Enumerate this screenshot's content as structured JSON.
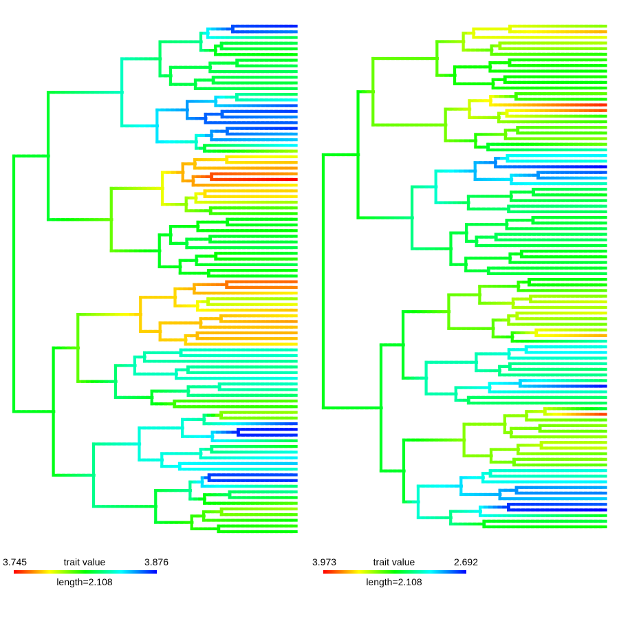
{
  "chart_data": [
    {
      "type": "phylogeny-contmap",
      "panel": "left",
      "legend": {
        "min_label": "3.745",
        "title": "trait value",
        "max_label": "3.876",
        "length_label": "length=2.108"
      },
      "tree_depth": 2.108,
      "tip_count": 90,
      "palette": [
        "#ff0000",
        "#ffff00",
        "#00ff00",
        "#00ffff",
        "#0000ff"
      ],
      "tip_values": [
        3.872,
        3.86,
        3.82,
        3.82,
        3.815,
        3.81,
        3.815,
        3.82,
        3.822,
        3.82,
        3.818,
        3.82,
        3.822,
        3.842,
        3.866,
        3.868,
        3.858,
        3.864,
        3.87,
        3.854,
        3.85,
        3.845,
        3.79,
        3.78,
        3.77,
        3.765,
        3.765,
        3.745,
        3.776,
        3.772,
        3.775,
        3.79,
        3.8,
        3.806,
        3.812,
        3.814,
        3.81,
        3.815,
        3.818,
        3.82,
        3.815,
        3.805,
        3.82,
        3.81,
        3.815,
        3.758,
        3.762,
        3.776,
        3.79,
        3.78,
        3.77,
        3.775,
        3.765,
        3.77,
        3.768,
        3.77,
        3.776,
        3.834,
        3.836,
        3.83,
        3.828,
        3.834,
        3.84,
        3.835,
        3.83,
        3.824,
        3.8,
        3.805,
        3.792,
        3.796,
        3.868,
        3.874,
        3.87,
        3.82,
        3.815,
        3.84,
        3.845,
        3.85,
        3.836,
        3.866,
        3.87,
        3.826,
        3.83,
        3.815,
        3.8,
        3.79,
        3.8,
        3.81,
        3.805,
        3.812
      ]
    },
    {
      "type": "phylogeny-contmap",
      "panel": "right",
      "legend": {
        "min_label": "3.973",
        "title": "trait value",
        "max_label": "2.692",
        "length_label": "length=2.108"
      },
      "tree_depth": 2.108,
      "tip_count": 90,
      "palette": [
        "#ff0000",
        "#ffff00",
        "#00ff00",
        "#00ffff",
        "#0000ff"
      ],
      "tip_values": [
        3.5,
        3.75,
        3.62,
        3.55,
        3.5,
        3.38,
        3.38,
        3.34,
        3.34,
        3.36,
        3.32,
        3.36,
        3.45,
        3.36,
        3.92,
        3.88,
        3.38,
        3.4,
        3.45,
        3.42,
        3.5,
        3.46,
        3.1,
        3.0,
        3.05,
        2.7,
        2.8,
        2.95,
        3.1,
        3.22,
        3.3,
        3.25,
        3.18,
        3.22,
        3.28,
        3.26,
        3.24,
        3.23,
        3.22,
        3.26,
        3.29,
        3.32,
        3.26,
        3.28,
        3.24,
        3.32,
        3.36,
        3.45,
        3.5,
        3.6,
        3.55,
        3.62,
        3.5,
        3.48,
        3.52,
        3.75,
        3.1,
        3.05,
        3.0,
        3.1,
        3.12,
        3.2,
        3.16,
        3.2,
        2.72,
        3.1,
        3.2,
        3.22,
        3.26,
        3.9,
        3.45,
        3.5,
        3.46,
        3.52,
        3.55,
        3.58,
        3.46,
        3.5,
        3.45,
        3.05,
        3.1,
        3.0,
        2.9,
        2.85,
        2.95,
        2.8,
        2.7,
        3.3,
        3.25,
        3.35
      ]
    }
  ]
}
